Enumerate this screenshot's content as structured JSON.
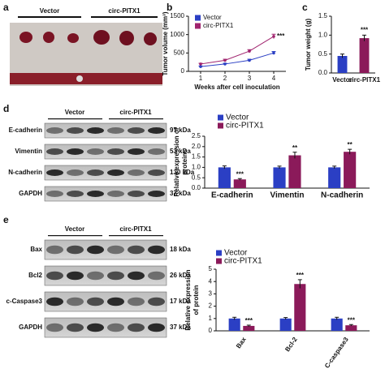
{
  "panel_labels": [
    "a",
    "b",
    "c",
    "d",
    "e"
  ],
  "photo": {
    "groups": [
      "Vector",
      "circ-PITX1"
    ]
  },
  "blot_d": {
    "groups": [
      "Vector",
      "circ-PITX1"
    ],
    "rows": [
      {
        "protein": "E-cadherin",
        "size": "97 kDa"
      },
      {
        "protein": "Vimentin",
        "size": "53 kDa"
      },
      {
        "protein": "N-cadherin",
        "size": "130 kDa"
      },
      {
        "protein": "GAPDH",
        "size": "37 kDa"
      }
    ]
  },
  "blot_e": {
    "groups": [
      "Vector",
      "circ-PITX1"
    ],
    "rows": [
      {
        "protein": "Bax",
        "size": "18 kDa"
      },
      {
        "protein": "Bcl2",
        "size": "26 kDa"
      },
      {
        "protein": "c-Caspase3",
        "size": "17 kDa"
      },
      {
        "protein": "GAPDH",
        "size": "37 kDa"
      }
    ]
  },
  "chart_data": [
    {
      "type": "line",
      "ylabel": [
        "Tumor volume (mm³)"
      ],
      "xlabel": "Weeks after cell inoculation",
      "x": [
        1,
        2,
        3,
        4
      ],
      "xlim": [
        0.5,
        4.5
      ],
      "xticks": [
        1,
        2,
        3,
        4
      ],
      "ylim": [
        0,
        1500
      ],
      "yticks": [
        0,
        500,
        1000,
        1500
      ],
      "series": [
        {
          "name": "Vector",
          "color": "#2b3fc4",
          "values": [
            130,
            200,
            300,
            500
          ],
          "errors": [
            15,
            20,
            30,
            40
          ]
        },
        {
          "name": "circ-PITX1",
          "color": "#a0236e",
          "values": [
            200,
            300,
            550,
            950
          ],
          "errors": [
            20,
            30,
            40,
            60
          ]
        }
      ],
      "annotation": "***"
    },
    {
      "type": "bar",
      "ylabel": [
        "Tumor weight (g)"
      ],
      "categories": [
        "Vector",
        "circ-PITX1"
      ],
      "values": [
        0.45,
        0.92
      ],
      "errors": [
        0.05,
        0.08
      ],
      "colors": [
        "#2b3fc4",
        "#8b1a5a"
      ],
      "ylim": [
        0,
        1.5
      ],
      "yticks": [
        {
          "value": 0,
          "label": "0.0"
        },
        0.5,
        {
          "value": 1,
          "label": "1.0"
        },
        1.5
      ],
      "annotation": "***"
    },
    {
      "type": "bar",
      "ylabel": [
        "Relative expression of",
        "proteins"
      ],
      "categories": [
        "E-cadherin",
        "Vimentin",
        "N-cadherin"
      ],
      "ylim": [
        0,
        2.5
      ],
      "yticks": [
        {
          "value": 0,
          "label": "0.0"
        },
        0.5,
        {
          "value": 1,
          "label": "1.0"
        },
        1.5,
        {
          "value": 2,
          "label": "2.0"
        },
        2.5
      ],
      "series": [
        {
          "name": "Vector",
          "color": "#2b3fc4",
          "values": [
            1,
            1,
            1
          ],
          "errors": [
            0.07,
            0.06,
            0.06
          ]
        },
        {
          "name": "circ-PITX1",
          "color": "#8b1a5a",
          "values": [
            0.42,
            1.58,
            1.75
          ],
          "errors": [
            0.04,
            0.15,
            0.12
          ],
          "significance": [
            "***",
            "**",
            "**"
          ]
        }
      ]
    },
    {
      "type": "bar",
      "ylabel": [
        "Relative expression",
        "of protein"
      ],
      "categories": [
        "Bax",
        "Bcl-2",
        "C-caspase3"
      ],
      "ylim": [
        0,
        5
      ],
      "yticks": [
        0,
        1,
        2,
        3,
        4,
        5
      ],
      "series": [
        {
          "name": "Vector",
          "color": "#2b3fc4",
          "values": [
            1,
            1,
            1
          ],
          "errors": [
            0.1,
            0.08,
            0.1
          ]
        },
        {
          "name": "circ-PITX1",
          "color": "#8b1a5a",
          "values": [
            0.4,
            3.8,
            0.45
          ],
          "errors": [
            0.06,
            0.35,
            0.06
          ],
          "significance": [
            "***",
            "***",
            "***"
          ]
        }
      ]
    }
  ]
}
